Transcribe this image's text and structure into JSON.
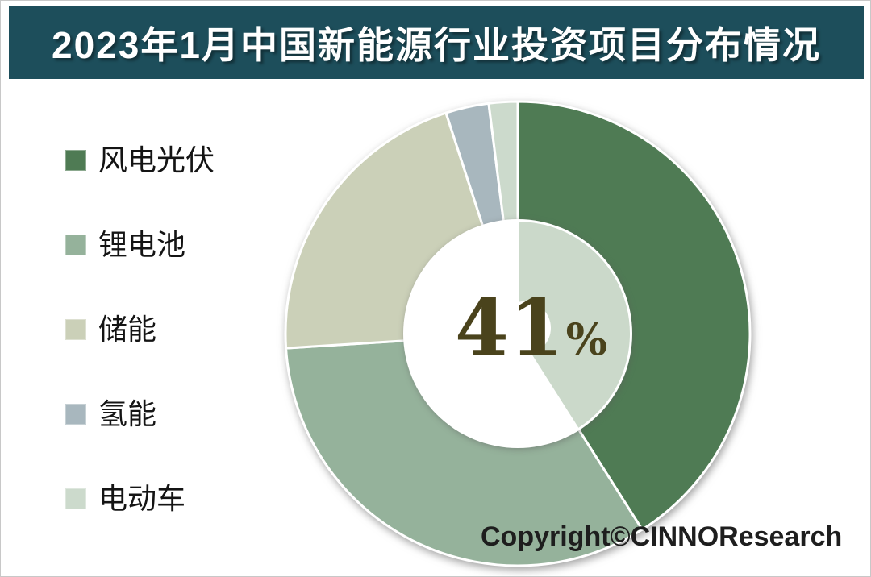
{
  "page": {
    "background": "#ffffff",
    "border_color": "#c8c8c8"
  },
  "header": {
    "title": "2023年1月中国新能源行业投资项目分布情况",
    "bg_color": "#1D4E5B",
    "text_color": "#FFFFFF"
  },
  "chart_data": {
    "type": "pie",
    "donut": true,
    "title": "2023年1月中国新能源行业投资项目分布情况",
    "start_angle_deg": 0,
    "direction": "clockwise",
    "legend_position": "left",
    "grid": false,
    "segments": [
      {
        "label": "风电光伏",
        "value": 41,
        "unit": "%",
        "color": "#4F7B54"
      },
      {
        "label": "锂电池",
        "value": 33,
        "unit": "%",
        "color": "#95B29B"
      },
      {
        "label": "储能",
        "value": 21,
        "unit": "%",
        "color": "#CBD0B8"
      },
      {
        "label": "氢能",
        "value": 3,
        "unit": "%",
        "color": "#A8B7BE"
      },
      {
        "label": "电动车",
        "value": 2,
        "unit": "%",
        "color": "#CCDACC"
      }
    ],
    "center_label": {
      "value": "41",
      "suffix": "%",
      "color": "#4A431C",
      "refers_to": "风电光伏"
    },
    "inner_highlight": {
      "segment": "风电光伏",
      "color": "#CBD9CA"
    },
    "separator_color": "#FFFFFF"
  },
  "footer": {
    "copyright": "Copyright©CINNOResearch"
  }
}
